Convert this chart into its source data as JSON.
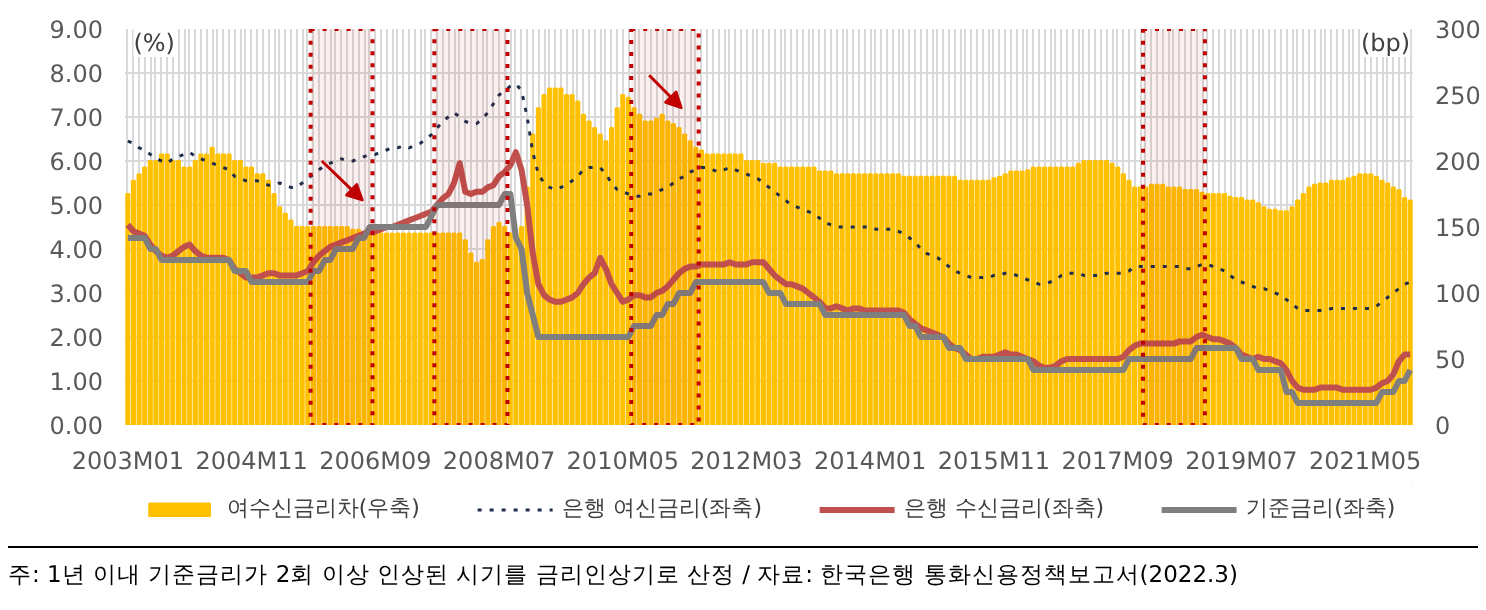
{
  "chart_data": {
    "type": "bar",
    "x": [
      "2003-01",
      "2003-02",
      "2003-03",
      "2003-04",
      "2003-05",
      "2003-06",
      "2003-07",
      "2003-08",
      "2003-09",
      "2003-10",
      "2003-11",
      "2003-12",
      "2004-01",
      "2004-02",
      "2004-03",
      "2004-04",
      "2004-05",
      "2004-06",
      "2004-07",
      "2004-08",
      "2004-09",
      "2004-10",
      "2004-11",
      "2004-12",
      "2005-01",
      "2005-02",
      "2005-03",
      "2005-04",
      "2005-05",
      "2005-06",
      "2005-07",
      "2005-08",
      "2005-09",
      "2005-10",
      "2005-11",
      "2005-12",
      "2006-01",
      "2006-02",
      "2006-03",
      "2006-04",
      "2006-05",
      "2006-06",
      "2006-07",
      "2006-08",
      "2006-09",
      "2006-10",
      "2006-11",
      "2006-12",
      "2007-01",
      "2007-02",
      "2007-03",
      "2007-04",
      "2007-05",
      "2007-06",
      "2007-07",
      "2007-08",
      "2007-09",
      "2007-10",
      "2007-11",
      "2007-12",
      "2008-01",
      "2008-02",
      "2008-03",
      "2008-04",
      "2008-05",
      "2008-06",
      "2008-07",
      "2008-08",
      "2008-09",
      "2008-10",
      "2008-11",
      "2008-12",
      "2009-01",
      "2009-02",
      "2009-03",
      "2009-04",
      "2009-05",
      "2009-06",
      "2009-07",
      "2009-08",
      "2009-09",
      "2009-10",
      "2009-11",
      "2009-12",
      "2010-01",
      "2010-02",
      "2010-03",
      "2010-04",
      "2010-05",
      "2010-06",
      "2010-07",
      "2010-08",
      "2010-09",
      "2010-10",
      "2010-11",
      "2010-12",
      "2011-01",
      "2011-02",
      "2011-03",
      "2011-04",
      "2011-05",
      "2011-06",
      "2011-07",
      "2011-08",
      "2011-09",
      "2011-10",
      "2011-11",
      "2011-12",
      "2012-01",
      "2012-02",
      "2012-03",
      "2012-04",
      "2012-05",
      "2012-06",
      "2012-07",
      "2012-08",
      "2012-09",
      "2012-10",
      "2012-11",
      "2012-12",
      "2013-01",
      "2013-02",
      "2013-03",
      "2013-04",
      "2013-05",
      "2013-06",
      "2013-07",
      "2013-08",
      "2013-09",
      "2013-10",
      "2013-11",
      "2013-12",
      "2014-01",
      "2014-02",
      "2014-03",
      "2014-04",
      "2014-05",
      "2014-06",
      "2014-07",
      "2014-08",
      "2014-09",
      "2014-10",
      "2014-11",
      "2014-12",
      "2015-01",
      "2015-02",
      "2015-03",
      "2015-04",
      "2015-05",
      "2015-06",
      "2015-07",
      "2015-08",
      "2015-09",
      "2015-10",
      "2015-11",
      "2015-12",
      "2016-01",
      "2016-02",
      "2016-03",
      "2016-04",
      "2016-05",
      "2016-06",
      "2016-07",
      "2016-08",
      "2016-09",
      "2016-10",
      "2016-11",
      "2016-12",
      "2017-01",
      "2017-02",
      "2017-03",
      "2017-04",
      "2017-05",
      "2017-06",
      "2017-07",
      "2017-08",
      "2017-09",
      "2017-10",
      "2017-11",
      "2017-12",
      "2018-01",
      "2018-02",
      "2018-03",
      "2018-04",
      "2018-05",
      "2018-06",
      "2018-07",
      "2018-08",
      "2018-09",
      "2018-10",
      "2018-11",
      "2018-12",
      "2019-01",
      "2019-02",
      "2019-03",
      "2019-04",
      "2019-05",
      "2019-06",
      "2019-07",
      "2019-08",
      "2019-09",
      "2019-10",
      "2019-11",
      "2019-12",
      "2020-01",
      "2020-02",
      "2020-03",
      "2020-04",
      "2020-05",
      "2020-06",
      "2020-07",
      "2020-08",
      "2020-09",
      "2020-10",
      "2020-11",
      "2020-12",
      "2021-01",
      "2021-02",
      "2021-03",
      "2021-04",
      "2021-05",
      "2021-06",
      "2021-07",
      "2021-08",
      "2021-09",
      "2021-10",
      "2021-11",
      "2021-12",
      "2022-01"
    ],
    "series": [
      {
        "name": "여수신금리차(우축)",
        "axis": "y2",
        "color": "#ffc000",
        "values": [
          175,
          185,
          190,
          195,
          200,
          200,
          205,
          205,
          200,
          200,
          195,
          195,
          200,
          205,
          205,
          210,
          205,
          205,
          205,
          200,
          200,
          195,
          195,
          190,
          190,
          185,
          175,
          165,
          160,
          155,
          150,
          150,
          150,
          150,
          150,
          150,
          150,
          150,
          150,
          150,
          148,
          148,
          145,
          145,
          145,
          145,
          145,
          145,
          145,
          145,
          145,
          145,
          145,
          145,
          145,
          145,
          145,
          145,
          145,
          145,
          140,
          130,
          123,
          125,
          140,
          150,
          153,
          150,
          145,
          140,
          150,
          180,
          220,
          240,
          250,
          255,
          255,
          255,
          250,
          250,
          245,
          235,
          230,
          225,
          220,
          215,
          225,
          240,
          250,
          248,
          240,
          235,
          230,
          230,
          232,
          235,
          230,
          228,
          225,
          220,
          215,
          210,
          208,
          205,
          205,
          205,
          205,
          205,
          205,
          205,
          200,
          200,
          200,
          198,
          198,
          198,
          195,
          195,
          195,
          195,
          195,
          195,
          195,
          192,
          192,
          192,
          190,
          190,
          190,
          190,
          190,
          190,
          190,
          190,
          190,
          190,
          190,
          190,
          188,
          188,
          188,
          188,
          188,
          188,
          188,
          188,
          188,
          188,
          185,
          185,
          185,
          185,
          185,
          185,
          187,
          188,
          190,
          192,
          192,
          192,
          193,
          195,
          195,
          195,
          195,
          195,
          195,
          195,
          195,
          198,
          200,
          200,
          200,
          200,
          200,
          198,
          195,
          190,
          185,
          180,
          180,
          180,
          182,
          182,
          182,
          180,
          180,
          180,
          178,
          178,
          178,
          176,
          175,
          175,
          175,
          175,
          173,
          172,
          172,
          170,
          170,
          168,
          165,
          163,
          163,
          162,
          162,
          165,
          170,
          175,
          180,
          182,
          183,
          183,
          185,
          185,
          185,
          187,
          188,
          190,
          190,
          190,
          188,
          185,
          183,
          180,
          178,
          172,
          170
        ]
      },
      {
        "name": "은행 여신금리(좌축)",
        "type": "line",
        "line_style": "dotted",
        "color": "#1f2d4d",
        "values": [
          6.45,
          6.4,
          6.3,
          6.25,
          6.15,
          6.05,
          6.0,
          5.95,
          6.05,
          6.1,
          6.15,
          6.2,
          6.1,
          6.05,
          6.0,
          5.95,
          5.9,
          5.85,
          5.8,
          5.65,
          5.6,
          5.55,
          5.55,
          5.55,
          5.5,
          5.45,
          5.45,
          5.5,
          5.45,
          5.4,
          5.4,
          5.5,
          5.6,
          5.7,
          5.8,
          5.9,
          5.95,
          6.0,
          6.05,
          6.0,
          6.0,
          6.05,
          6.1,
          6.15,
          6.15,
          6.2,
          6.25,
          6.3,
          6.3,
          6.35,
          6.3,
          6.35,
          6.4,
          6.5,
          6.6,
          6.75,
          6.9,
          7.0,
          7.1,
          7.0,
          6.9,
          6.85,
          6.85,
          6.95,
          7.1,
          7.3,
          7.5,
          7.6,
          7.7,
          7.75,
          7.6,
          7.0,
          6.2,
          5.7,
          5.5,
          5.4,
          5.35,
          5.4,
          5.45,
          5.55,
          5.65,
          5.8,
          5.85,
          5.85,
          5.85,
          5.7,
          5.5,
          5.35,
          5.3,
          5.25,
          5.2,
          5.2,
          5.25,
          5.25,
          5.3,
          5.35,
          5.4,
          5.5,
          5.6,
          5.65,
          5.75,
          5.8,
          5.85,
          5.85,
          5.8,
          5.75,
          5.8,
          5.85,
          5.8,
          5.75,
          5.7,
          5.65,
          5.6,
          5.5,
          5.4,
          5.3,
          5.2,
          5.1,
          5.0,
          4.95,
          4.9,
          4.85,
          4.8,
          4.7,
          4.6,
          4.55,
          4.5,
          4.5,
          4.5,
          4.5,
          4.5,
          4.5,
          4.5,
          4.45,
          4.45,
          4.45,
          4.45,
          4.4,
          4.35,
          4.25,
          4.15,
          4.0,
          3.9,
          3.85,
          3.8,
          3.7,
          3.6,
          3.5,
          3.45,
          3.4,
          3.35,
          3.35,
          3.35,
          3.35,
          3.4,
          3.4,
          3.45,
          3.45,
          3.4,
          3.35,
          3.3,
          3.25,
          3.2,
          3.2,
          3.25,
          3.3,
          3.4,
          3.45,
          3.45,
          3.45,
          3.4,
          3.4,
          3.4,
          3.4,
          3.45,
          3.45,
          3.45,
          3.45,
          3.5,
          3.6,
          3.6,
          3.6,
          3.6,
          3.6,
          3.6,
          3.6,
          3.6,
          3.6,
          3.55,
          3.55,
          3.6,
          3.65,
          3.65,
          3.6,
          3.55,
          3.5,
          3.4,
          3.3,
          3.25,
          3.2,
          3.15,
          3.1,
          3.1,
          3.05,
          3.0,
          2.95,
          2.85,
          2.75,
          2.65,
          2.6,
          2.6,
          2.6,
          2.6,
          2.6,
          2.65,
          2.65,
          2.65,
          2.65,
          2.65,
          2.65,
          2.65,
          2.65,
          2.7,
          2.8,
          2.9,
          3.0,
          3.1,
          3.2,
          3.25
        ]
      },
      {
        "name": "은행 수신금리(좌축)",
        "type": "line",
        "line_style": "solid",
        "color": "#c0504d",
        "values": [
          4.55,
          4.4,
          4.35,
          4.3,
          4.1,
          3.95,
          3.85,
          3.8,
          3.85,
          3.95,
          4.05,
          4.1,
          3.95,
          3.85,
          3.8,
          3.8,
          3.8,
          3.8,
          3.75,
          3.55,
          3.45,
          3.35,
          3.35,
          3.35,
          3.4,
          3.45,
          3.45,
          3.4,
          3.4,
          3.4,
          3.4,
          3.45,
          3.5,
          3.7,
          3.85,
          3.95,
          4.05,
          4.1,
          4.15,
          4.2,
          4.25,
          4.3,
          4.35,
          4.4,
          4.4,
          4.45,
          4.5,
          4.5,
          4.55,
          4.6,
          4.65,
          4.7,
          4.75,
          4.8,
          4.85,
          5.0,
          5.15,
          5.25,
          5.5,
          5.95,
          5.3,
          5.25,
          5.3,
          5.3,
          5.4,
          5.45,
          5.65,
          5.75,
          5.9,
          6.2,
          5.8,
          5.0,
          3.9,
          3.2,
          2.95,
          2.85,
          2.8,
          2.8,
          2.85,
          2.9,
          3.0,
          3.2,
          3.35,
          3.45,
          3.8,
          3.55,
          3.2,
          3.0,
          2.8,
          2.85,
          2.95,
          2.95,
          2.9,
          2.9,
          3.0,
          3.05,
          3.15,
          3.3,
          3.45,
          3.55,
          3.6,
          3.6,
          3.65,
          3.65,
          3.65,
          3.65,
          3.65,
          3.7,
          3.65,
          3.65,
          3.65,
          3.7,
          3.7,
          3.7,
          3.55,
          3.4,
          3.3,
          3.2,
          3.2,
          3.15,
          3.1,
          3.0,
          2.9,
          2.8,
          2.65,
          2.65,
          2.7,
          2.65,
          2.6,
          2.65,
          2.65,
          2.6,
          2.6,
          2.6,
          2.6,
          2.6,
          2.6,
          2.6,
          2.55,
          2.4,
          2.3,
          2.2,
          2.15,
          2.1,
          2.05,
          2.0,
          1.85,
          1.75,
          1.7,
          1.6,
          1.5,
          1.5,
          1.55,
          1.55,
          1.55,
          1.6,
          1.65,
          1.6,
          1.6,
          1.55,
          1.5,
          1.45,
          1.35,
          1.3,
          1.3,
          1.35,
          1.45,
          1.5,
          1.5,
          1.5,
          1.5,
          1.5,
          1.5,
          1.5,
          1.5,
          1.5,
          1.5,
          1.55,
          1.7,
          1.8,
          1.85,
          1.85,
          1.85,
          1.85,
          1.85,
          1.85,
          1.85,
          1.9,
          1.9,
          1.9,
          2.0,
          2.05,
          2.0,
          1.95,
          1.95,
          1.9,
          1.85,
          1.75,
          1.6,
          1.55,
          1.5,
          1.55,
          1.5,
          1.5,
          1.45,
          1.4,
          1.25,
          1.0,
          0.85,
          0.8,
          0.8,
          0.8,
          0.85,
          0.85,
          0.85,
          0.85,
          0.8,
          0.8,
          0.8,
          0.8,
          0.8,
          0.8,
          0.85,
          0.95,
          1.0,
          1.15,
          1.45,
          1.6,
          1.6
        ]
      },
      {
        "name": "기준금리(좌축)",
        "type": "line",
        "line_style": "solid",
        "color": "#7f7f7f",
        "values": [
          4.25,
          4.25,
          4.25,
          4.25,
          4,
          4,
          3.75,
          3.75,
          3.75,
          3.75,
          3.75,
          3.75,
          3.75,
          3.75,
          3.75,
          3.75,
          3.75,
          3.75,
          3.75,
          3.5,
          3.5,
          3.5,
          3.25,
          3.25,
          3.25,
          3.25,
          3.25,
          3.25,
          3.25,
          3.25,
          3.25,
          3.25,
          3.25,
          3.5,
          3.5,
          3.75,
          3.75,
          4,
          4,
          4,
          4,
          4.25,
          4.25,
          4.5,
          4.5,
          4.5,
          4.5,
          4.5,
          4.5,
          4.5,
          4.5,
          4.5,
          4.5,
          4.5,
          4.75,
          5,
          5,
          5,
          5,
          5,
          5,
          5,
          5,
          5,
          5,
          5,
          5,
          5.25,
          5.25,
          4.25,
          4,
          3,
          2.5,
          2,
          2,
          2,
          2,
          2,
          2,
          2,
          2,
          2,
          2,
          2,
          2,
          2,
          2,
          2,
          2,
          2,
          2.25,
          2.25,
          2.25,
          2.25,
          2.5,
          2.5,
          2.75,
          2.75,
          3,
          3,
          3,
          3.25,
          3.25,
          3.25,
          3.25,
          3.25,
          3.25,
          3.25,
          3.25,
          3.25,
          3.25,
          3.25,
          3.25,
          3.25,
          3,
          3,
          3,
          2.75,
          2.75,
          2.75,
          2.75,
          2.75,
          2.75,
          2.75,
          2.5,
          2.5,
          2.5,
          2.5,
          2.5,
          2.5,
          2.5,
          2.5,
          2.5,
          2.5,
          2.5,
          2.5,
          2.5,
          2.5,
          2.5,
          2.25,
          2.25,
          2,
          2,
          2,
          2,
          2,
          1.75,
          1.75,
          1.75,
          1.5,
          1.5,
          1.5,
          1.5,
          1.5,
          1.5,
          1.5,
          1.5,
          1.5,
          1.5,
          1.5,
          1.5,
          1.25,
          1.25,
          1.25,
          1.25,
          1.25,
          1.25,
          1.25,
          1.25,
          1.25,
          1.25,
          1.25,
          1.25,
          1.25,
          1.25,
          1.25,
          1.25,
          1.25,
          1.5,
          1.5,
          1.5,
          1.5,
          1.5,
          1.5,
          1.5,
          1.5,
          1.5,
          1.5,
          1.5,
          1.5,
          1.75,
          1.75,
          1.75,
          1.75,
          1.75,
          1.75,
          1.75,
          1.75,
          1.5,
          1.5,
          1.5,
          1.25,
          1.25,
          1.25,
          1.25,
          1.25,
          0.75,
          0.75,
          0.5,
          0.5,
          0.5,
          0.5,
          0.5,
          0.5,
          0.5,
          0.5,
          0.5,
          0.5,
          0.5,
          0.5,
          0.5,
          0.5,
          0.5,
          0.75,
          0.75,
          0.75,
          1,
          1,
          1.25
        ]
      }
    ],
    "ylabel": "(%)",
    "y2label": "(bp)",
    "xlim": [
      "2003-01",
      "2022-01"
    ],
    "xticks": [
      {
        "value": "2003-01",
        "label": "2003M01"
      },
      {
        "value": "2004-11",
        "label": "2004M11"
      },
      {
        "value": "2006-09",
        "label": "2006M09"
      },
      {
        "value": "2008-07",
        "label": "2008M07"
      },
      {
        "value": "2010-05",
        "label": "2010M05"
      },
      {
        "value": "2012-03",
        "label": "2012M03"
      },
      {
        "value": "2014-01",
        "label": "2014M01"
      },
      {
        "value": "2015-11",
        "label": "2015M11"
      },
      {
        "value": "2017-09",
        "label": "2017M09"
      },
      {
        "value": "2019-07",
        "label": "2019M07"
      },
      {
        "value": "2021-05",
        "label": "2021M05"
      }
    ],
    "ylim": [
      0,
      9
    ],
    "yticks": [
      {
        "value": 0,
        "label": "0.00"
      },
      {
        "value": 1,
        "label": "1.00"
      },
      {
        "value": 2,
        "label": "2.00"
      },
      {
        "value": 3,
        "label": "3.00"
      },
      {
        "value": 4,
        "label": "4.00"
      },
      {
        "value": 5,
        "label": "5.00"
      },
      {
        "value": 6,
        "label": "6.00"
      },
      {
        "value": 7,
        "label": "7.00"
      },
      {
        "value": 8,
        "label": "8.00"
      },
      {
        "value": 9,
        "label": "9.00"
      }
    ],
    "y2lim": [
      0,
      300
    ],
    "y2ticks": [
      0,
      50,
      100,
      150,
      200,
      250,
      300
    ],
    "bands": [
      {
        "axis": "x",
        "from": "2005-10",
        "to": "2006-08",
        "color": "#c00000"
      },
      {
        "axis": "x",
        "from": "2007-08",
        "to": "2008-08",
        "color": "#c00000"
      },
      {
        "axis": "x",
        "from": "2010-07",
        "to": "2011-06",
        "color": "#c00000"
      },
      {
        "axis": "x",
        "from": "2018-02",
        "to": "2018-12",
        "color": "#c00000"
      }
    ],
    "grid": true,
    "legend": "bottom",
    "annotations": [
      "주: 1년 이내 기준금리가 2회 이상 인상된 시기를 금리인상기로 산정 / 자료: 한국은행 통화신용정책보고서(2022.3)"
    ]
  }
}
